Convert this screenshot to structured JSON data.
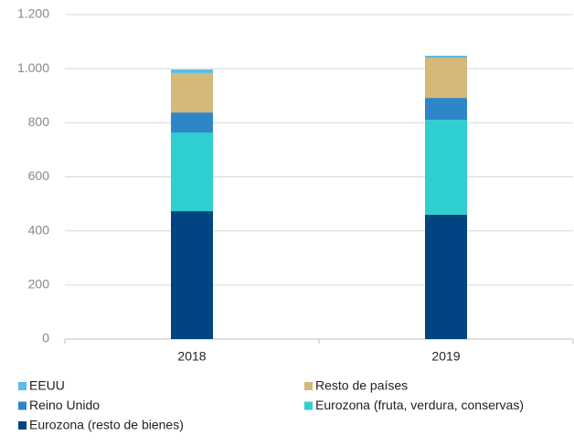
{
  "chart_data": {
    "type": "stacked_bar",
    "categories": [
      "2018",
      "2019"
    ],
    "series": [
      {
        "name": "Eurozona (resto de bienes)",
        "color": "#004582",
        "values": [
          473,
          460
        ]
      },
      {
        "name": "Eurozona (fruta, verdura, conservas)",
        "color": "#2fcfcf",
        "values": [
          291,
          351
        ]
      },
      {
        "name": "Reino Unido",
        "color": "#2e86c8",
        "values": [
          74,
          81
        ]
      },
      {
        "name": "Resto de países",
        "color": "#d4b978",
        "values": [
          146,
          149
        ]
      },
      {
        "name": "EEUU",
        "color": "#5bbce8",
        "values": [
          13,
          7
        ]
      }
    ],
    "ylim": [
      0,
      1200
    ],
    "yticks": [
      0,
      200,
      400,
      600,
      800,
      {
        "value": 1000,
        "label": "1.000"
      },
      {
        "value": 1200,
        "label": "1.200"
      }
    ],
    "grid": true
  }
}
